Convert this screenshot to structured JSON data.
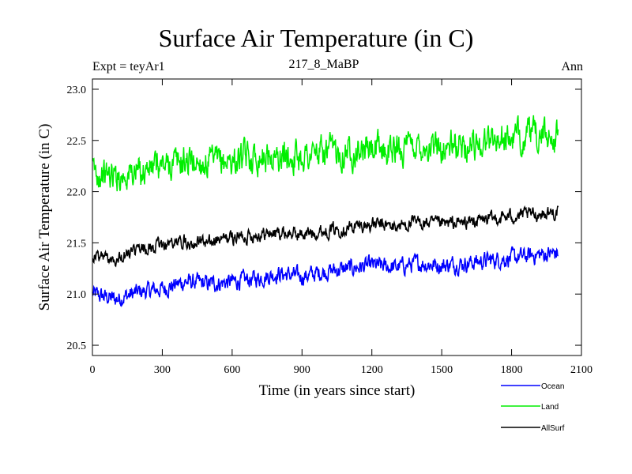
{
  "chart_data": {
    "type": "line",
    "title": "Surface Air Temperature (in C)",
    "subtitle_left": "Expt = teyAr1",
    "subtitle_center": "217_8_MaBP",
    "subtitle_right": "Ann",
    "xlabel": "Time (in years since start)",
    "ylabel": "Surface Air Temperature (in C)",
    "xlim": [
      0,
      2100
    ],
    "ylim": [
      20.4,
      23.1
    ],
    "xticks": [
      0,
      300,
      600,
      900,
      1200,
      1500,
      1800,
      2100
    ],
    "xtick_labels": [
      "0",
      "300",
      "600",
      "900",
      "1200",
      "1500",
      "1800",
      "2100"
    ],
    "yticks": [
      20.5,
      21.0,
      21.5,
      22.0,
      22.5,
      23.0
    ],
    "ytick_labels": [
      "20.5",
      "21.0",
      "21.5",
      "22.0",
      "22.5",
      "23.0"
    ],
    "grid": false,
    "legend_position": "bottom-right",
    "series": [
      {
        "name": "Ocean",
        "color": "#0000ff",
        "x": [
          0,
          100,
          200,
          300,
          400,
          500,
          600,
          700,
          800,
          900,
          1000,
          1100,
          1200,
          1300,
          1400,
          1500,
          1600,
          1700,
          1800,
          1900,
          2000
        ],
        "values": [
          21.0,
          20.95,
          21.02,
          21.05,
          21.12,
          21.1,
          21.12,
          21.15,
          21.2,
          21.17,
          21.22,
          21.25,
          21.28,
          21.26,
          21.3,
          21.28,
          21.3,
          21.33,
          21.35,
          21.38,
          21.4
        ]
      },
      {
        "name": "Land",
        "color": "#00ee00",
        "x": [
          0,
          100,
          200,
          300,
          400,
          500,
          600,
          700,
          800,
          900,
          1000,
          1100,
          1200,
          1300,
          1400,
          1500,
          1600,
          1700,
          1800,
          1900,
          2000
        ],
        "values": [
          22.2,
          22.15,
          22.2,
          22.25,
          22.3,
          22.28,
          22.3,
          22.35,
          22.33,
          22.35,
          22.38,
          22.4,
          22.42,
          22.4,
          22.45,
          22.43,
          22.45,
          22.5,
          22.52,
          22.55,
          22.55
        ]
      },
      {
        "name": "AllSurf",
        "color": "#000000",
        "x": [
          0,
          100,
          200,
          300,
          400,
          500,
          600,
          700,
          800,
          900,
          1000,
          1100,
          1200,
          1300,
          1400,
          1500,
          1600,
          1700,
          1800,
          1900,
          2000
        ],
        "values": [
          21.38,
          21.35,
          21.42,
          21.48,
          21.52,
          21.5,
          21.55,
          21.58,
          21.6,
          21.58,
          21.62,
          21.65,
          21.68,
          21.66,
          21.7,
          21.68,
          21.7,
          21.73,
          21.76,
          21.78,
          21.8
        ]
      }
    ]
  }
}
